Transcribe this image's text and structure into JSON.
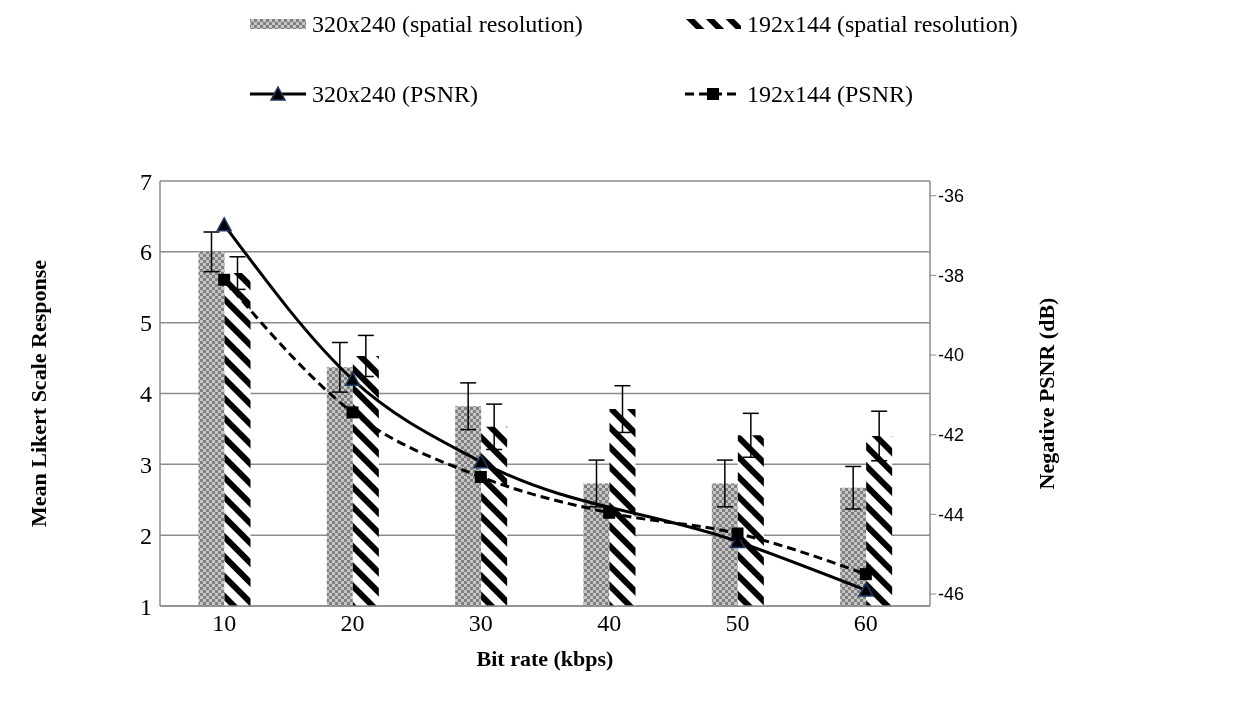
{
  "chart_data": {
    "type": "bar",
    "xlabel": "Bit rate (kbps)",
    "ylabel": "Mean Likert Scale Response",
    "y2label": "Negative PSNR (dB)",
    "categories": [
      "10",
      "20",
      "30",
      "40",
      "50",
      "60"
    ],
    "series": [
      {
        "name": "320x240 (spatial resolution)",
        "color": "#808080",
        "values": [
          6.0,
          4.37,
          3.82,
          2.73,
          2.73,
          2.67
        ],
        "errors": [
          0.28,
          0.35,
          0.33,
          0.33,
          0.33,
          0.3
        ]
      },
      {
        "name": "192x144 (spatial resolution)",
        "color": "#000000",
        "values": [
          5.7,
          4.53,
          3.53,
          3.78,
          3.41,
          3.4
        ],
        "errors": [
          0.23,
          0.29,
          0.32,
          0.33,
          0.31,
          0.35
        ]
      },
      {
        "name": "320x240 (PSNR)",
        "type": "line",
        "axis": "y2",
        "color": "#000000",
        "marker": "triangle",
        "line_style": "solid",
        "values": [
          -36.73,
          -40.61,
          -42.68,
          null,
          -44.68,
          -45.9
        ]
      },
      {
        "name": "192x144 (PSNR)",
        "type": "line",
        "axis": "y2",
        "color": "#000000",
        "marker": "square",
        "line_style": "dashed",
        "values": [
          -38.11,
          -41.44,
          -43.06,
          -43.96,
          -44.48,
          -45.5
        ]
      }
    ],
    "ylim": [
      1,
      7
    ],
    "yticks": [
      1,
      2,
      3,
      4,
      5,
      6,
      7
    ],
    "y2lim": [
      -46.3,
      -35.63
    ],
    "y2ticks": [
      -46,
      -44,
      -42,
      -40,
      -38,
      -36
    ],
    "grid": "y",
    "legend": "top"
  }
}
